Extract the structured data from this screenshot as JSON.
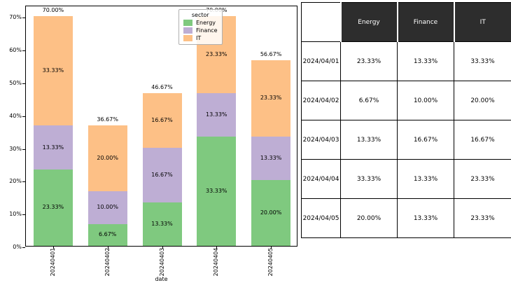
{
  "chart_data": {
    "type": "bar",
    "stacked": true,
    "title": "",
    "xlabel": "date",
    "ylabel": "",
    "categories": [
      "20240401",
      "20240402",
      "20240403",
      "20240404",
      "20240405"
    ],
    "series": [
      {
        "name": "Energy",
        "color": "#7fc97f",
        "values": [
          23.33,
          6.67,
          13.33,
          33.33,
          20.0
        ]
      },
      {
        "name": "Finance",
        "color": "#beaed4",
        "values": [
          13.33,
          10.0,
          16.67,
          13.33,
          13.33
        ]
      },
      {
        "name": "IT",
        "color": "#fdc086",
        "values": [
          33.33,
          20.0,
          16.67,
          23.33,
          23.33
        ]
      }
    ],
    "totals": [
      70.0,
      36.67,
      46.67,
      70.0,
      56.67
    ],
    "legend": {
      "title": "sector",
      "position": "upper-right"
    },
    "ylim": [
      0,
      73.5
    ],
    "yticks": [
      0,
      10,
      20,
      30,
      40,
      50,
      60,
      70
    ],
    "ytick_suffix": "%",
    "grid": false
  },
  "table": {
    "corner_label": "",
    "headers": [
      "Energy",
      "Finance",
      "IT"
    ],
    "rows": [
      {
        "date": "2024/04/01",
        "values": [
          "23.33%",
          "13.33%",
          "33.33%"
        ]
      },
      {
        "date": "2024/04/02",
        "values": [
          "6.67%",
          "10.00%",
          "20.00%"
        ]
      },
      {
        "date": "2024/04/03",
        "values": [
          "13.33%",
          "16.67%",
          "16.67%"
        ]
      },
      {
        "date": "2024/04/04",
        "values": [
          "33.33%",
          "13.33%",
          "23.33%"
        ]
      },
      {
        "date": "2024/04/05",
        "values": [
          "20.00%",
          "13.33%",
          "23.33%"
        ]
      }
    ],
    "colors": {
      "header_bg": "#2d2d2d",
      "header_text": "#ffffff",
      "border": "#000000"
    }
  }
}
